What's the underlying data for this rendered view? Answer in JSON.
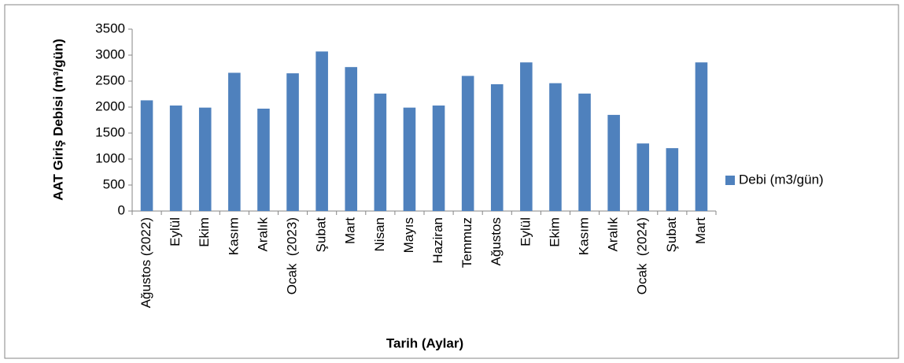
{
  "chart_data": {
    "type": "bar",
    "ylabel": "AAT Giriş Debisi (m³/gün)",
    "xlabel": "Tarih (Aylar)",
    "categories": [
      "Ağustos (2022)",
      "Eylül",
      "Ekim",
      "Kasım",
      "Aralık",
      "Ocak  (2023)",
      "Şubat",
      "Mart",
      "Nisan",
      "Mayıs",
      "Haziran",
      "Temmuz",
      "Ağustos",
      "Eylül",
      "Ekim",
      "Kasım",
      "Aralık",
      "Ocak  (2024)",
      "Şubat",
      "Mart"
    ],
    "series": [
      {
        "name": "Debi (m3/gün)",
        "color": "#4f81bd",
        "values": [
          2130,
          2030,
          1990,
          2660,
          1970,
          2650,
          3070,
          2770,
          2260,
          1990,
          2030,
          2600,
          2440,
          2860,
          2460,
          2260,
          1850,
          1300,
          1210,
          2860
        ]
      }
    ],
    "ylim": [
      0,
      3500
    ],
    "yticks": [
      0,
      500,
      1000,
      1500,
      2000,
      2500,
      3000,
      3500
    ],
    "grid": false,
    "legend": "right"
  }
}
